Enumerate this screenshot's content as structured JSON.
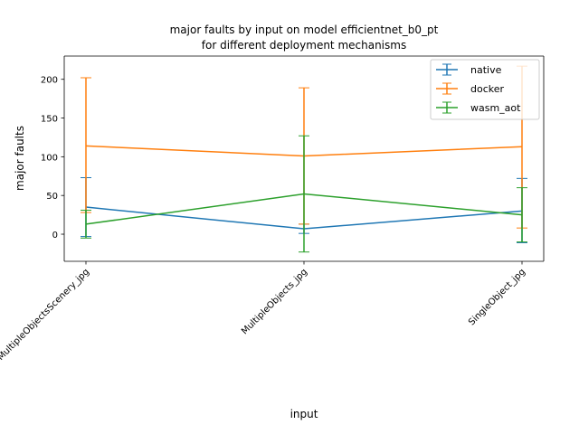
{
  "chart_data": {
    "type": "line",
    "title_line1": "major faults by input on model efficientnet_b0_pt",
    "title_line2": "for different deployment mechanisms",
    "xlabel": "input",
    "ylabel": "major faults",
    "categories": [
      "MultipleObjectsScenery_jpg",
      "MultipleObjects_jpg",
      "SingleObject_jpg"
    ],
    "ylim": [
      -35,
      230
    ],
    "yticks": [
      0,
      50,
      100,
      150,
      200
    ],
    "grid": false,
    "legend_position": "top-right",
    "series": [
      {
        "name": "native",
        "color": "#1f77b4",
        "values": [
          35,
          7,
          30
        ],
        "lower": [
          -3,
          1,
          -11
        ],
        "upper": [
          73,
          13,
          72
        ]
      },
      {
        "name": "docker",
        "color": "#ff7f0e",
        "values": [
          114,
          101,
          113
        ],
        "lower": [
          28,
          13,
          8
        ],
        "upper": [
          202,
          189,
          217
        ]
      },
      {
        "name": "wasm_aot",
        "color": "#2ca02c",
        "values": [
          13,
          52,
          25
        ],
        "lower": [
          -5,
          -23,
          -10
        ],
        "upper": [
          31,
          127,
          60
        ]
      }
    ]
  }
}
